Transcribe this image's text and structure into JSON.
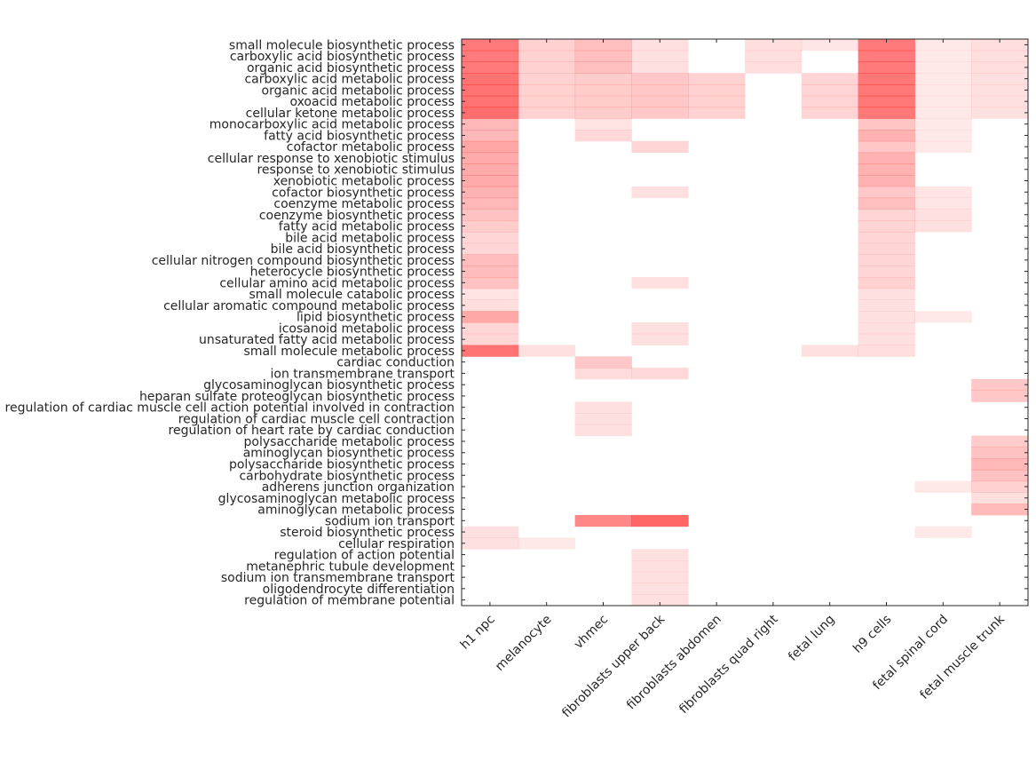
{
  "chart_data": {
    "type": "heatmap",
    "base_color": "#ff0000",
    "background_color": "#ffffff",
    "columns": [
      "h1 npc",
      "melanocyte",
      "vhmec",
      "fibroblasts upper back",
      "fibroblasts abdomen",
      "fibroblasts quad right",
      "fetal lung",
      "h9 cells",
      "fetal spinal cord",
      "fetal muscle trunk"
    ],
    "rows": [
      "small molecule biosynthetic process",
      "carboxylic acid biosynthetic process",
      "organic acid biosynthetic process",
      "carboxylic acid metabolic process",
      "organic acid metabolic process",
      "oxoacid metabolic process",
      "cellular ketone metabolic process",
      "monocarboxylic acid metabolic process",
      "fatty acid biosynthetic process",
      "cofactor metabolic process",
      "cellular response to xenobiotic stimulus",
      "response to xenobiotic stimulus",
      "xenobiotic metabolic process",
      "cofactor biosynthetic process",
      "coenzyme metabolic process",
      "coenzyme biosynthetic process",
      "fatty acid metabolic process",
      "bile acid metabolic process",
      "bile acid biosynthetic process",
      "cellular nitrogen compound biosynthetic process",
      "heterocycle biosynthetic process",
      "cellular amino acid metabolic process",
      "small molecule catabolic process",
      "cellular aromatic compound metabolic process",
      "lipid biosynthetic process",
      "icosanoid metabolic process",
      "unsaturated fatty acid metabolic process",
      "small molecule metabolic process",
      "cardiac conduction",
      "ion transmembrane transport",
      "glycosaminoglycan biosynthetic process",
      "heparan sulfate proteoglycan biosynthetic process",
      "regulation of cardiac muscle cell action potential involved in contraction",
      "regulation of cardiac muscle cell contraction",
      "regulation of heart rate by cardiac conduction",
      "polysaccharide metabolic process",
      "aminoglycan biosynthetic process",
      "polysaccharide biosynthetic process",
      "carbohydrate biosynthetic process",
      "adherens junction organization",
      "glycosaminoglycan metabolic process",
      "aminoglycan metabolic process",
      "sodium ion transport",
      "steroid biosynthetic process",
      "cellular respiration",
      "regulation of action potential",
      "metanephric tubule development",
      "sodium ion transmembrane transport",
      "oligodendrocyte differentiation",
      "regulation of membrane potential"
    ],
    "values": [
      [
        0.52,
        0.18,
        0.25,
        0.12,
        0.0,
        0.13,
        0.1,
        0.52,
        0.09,
        0.13
      ],
      [
        0.52,
        0.18,
        0.25,
        0.12,
        0.0,
        0.13,
        0.0,
        0.52,
        0.09,
        0.13
      ],
      [
        0.52,
        0.18,
        0.25,
        0.12,
        0.0,
        0.13,
        0.0,
        0.52,
        0.09,
        0.13
      ],
      [
        0.55,
        0.18,
        0.2,
        0.22,
        0.18,
        0.0,
        0.17,
        0.53,
        0.09,
        0.12
      ],
      [
        0.55,
        0.18,
        0.2,
        0.22,
        0.18,
        0.0,
        0.17,
        0.53,
        0.09,
        0.12
      ],
      [
        0.55,
        0.18,
        0.2,
        0.22,
        0.18,
        0.0,
        0.17,
        0.53,
        0.09,
        0.12
      ],
      [
        0.57,
        0.18,
        0.2,
        0.22,
        0.18,
        0.0,
        0.17,
        0.53,
        0.09,
        0.12
      ],
      [
        0.28,
        0.0,
        0.11,
        0.0,
        0.0,
        0.0,
        0.0,
        0.23,
        0.09,
        0.0
      ],
      [
        0.28,
        0.0,
        0.15,
        0.0,
        0.0,
        0.0,
        0.0,
        0.3,
        0.09,
        0.0
      ],
      [
        0.35,
        0.0,
        0.0,
        0.16,
        0.0,
        0.0,
        0.0,
        0.22,
        0.09,
        0.0
      ],
      [
        0.33,
        0.0,
        0.0,
        0.0,
        0.0,
        0.0,
        0.0,
        0.3,
        0.0,
        0.0
      ],
      [
        0.33,
        0.0,
        0.0,
        0.0,
        0.0,
        0.0,
        0.0,
        0.3,
        0.0,
        0.0
      ],
      [
        0.33,
        0.0,
        0.0,
        0.0,
        0.0,
        0.0,
        0.0,
        0.3,
        0.0,
        0.0
      ],
      [
        0.3,
        0.0,
        0.0,
        0.12,
        0.0,
        0.0,
        0.0,
        0.21,
        0.1,
        0.0
      ],
      [
        0.28,
        0.0,
        0.0,
        0.0,
        0.0,
        0.0,
        0.0,
        0.25,
        0.1,
        0.0
      ],
      [
        0.24,
        0.0,
        0.0,
        0.0,
        0.0,
        0.0,
        0.0,
        0.17,
        0.12,
        0.0
      ],
      [
        0.2,
        0.0,
        0.0,
        0.0,
        0.0,
        0.0,
        0.0,
        0.17,
        0.12,
        0.0
      ],
      [
        0.16,
        0.0,
        0.0,
        0.0,
        0.0,
        0.0,
        0.0,
        0.16,
        0.0,
        0.0
      ],
      [
        0.16,
        0.0,
        0.0,
        0.0,
        0.0,
        0.0,
        0.0,
        0.16,
        0.0,
        0.0
      ],
      [
        0.26,
        0.0,
        0.0,
        0.0,
        0.0,
        0.0,
        0.0,
        0.16,
        0.0,
        0.0
      ],
      [
        0.26,
        0.0,
        0.0,
        0.0,
        0.0,
        0.0,
        0.0,
        0.16,
        0.0,
        0.0
      ],
      [
        0.24,
        0.0,
        0.0,
        0.12,
        0.0,
        0.0,
        0.0,
        0.18,
        0.0,
        0.0
      ],
      [
        0.11,
        0.0,
        0.0,
        0.0,
        0.0,
        0.0,
        0.0,
        0.12,
        0.0,
        0.0
      ],
      [
        0.13,
        0.0,
        0.0,
        0.0,
        0.0,
        0.0,
        0.0,
        0.12,
        0.0,
        0.0
      ],
      [
        0.34,
        0.0,
        0.0,
        0.0,
        0.0,
        0.0,
        0.0,
        0.12,
        0.09,
        0.0
      ],
      [
        0.16,
        0.0,
        0.0,
        0.12,
        0.0,
        0.0,
        0.0,
        0.12,
        0.0,
        0.0
      ],
      [
        0.16,
        0.0,
        0.0,
        0.12,
        0.0,
        0.0,
        0.0,
        0.12,
        0.0,
        0.0
      ],
      [
        0.55,
        0.12,
        0.0,
        0.0,
        0.0,
        0.0,
        0.12,
        0.13,
        0.0,
        0.0
      ],
      [
        0.0,
        0.0,
        0.22,
        0.0,
        0.0,
        0.0,
        0.0,
        0.0,
        0.0,
        0.0
      ],
      [
        0.0,
        0.0,
        0.14,
        0.15,
        0.0,
        0.0,
        0.0,
        0.0,
        0.0,
        0.0
      ],
      [
        0.0,
        0.0,
        0.0,
        0.0,
        0.0,
        0.0,
        0.0,
        0.0,
        0.0,
        0.22
      ],
      [
        0.0,
        0.0,
        0.0,
        0.0,
        0.0,
        0.0,
        0.0,
        0.0,
        0.0,
        0.22
      ],
      [
        0.0,
        0.0,
        0.12,
        0.0,
        0.0,
        0.0,
        0.0,
        0.0,
        0.0,
        0.0
      ],
      [
        0.0,
        0.0,
        0.12,
        0.0,
        0.0,
        0.0,
        0.0,
        0.0,
        0.0,
        0.0
      ],
      [
        0.0,
        0.0,
        0.12,
        0.0,
        0.0,
        0.0,
        0.0,
        0.0,
        0.0,
        0.0
      ],
      [
        0.0,
        0.0,
        0.0,
        0.0,
        0.0,
        0.0,
        0.0,
        0.0,
        0.0,
        0.2
      ],
      [
        0.0,
        0.0,
        0.0,
        0.0,
        0.0,
        0.0,
        0.0,
        0.0,
        0.0,
        0.24
      ],
      [
        0.0,
        0.0,
        0.0,
        0.0,
        0.0,
        0.0,
        0.0,
        0.0,
        0.0,
        0.28
      ],
      [
        0.0,
        0.0,
        0.0,
        0.0,
        0.0,
        0.0,
        0.0,
        0.0,
        0.0,
        0.24
      ],
      [
        0.0,
        0.0,
        0.0,
        0.0,
        0.0,
        0.0,
        0.0,
        0.0,
        0.09,
        0.18
      ],
      [
        0.0,
        0.0,
        0.0,
        0.0,
        0.0,
        0.0,
        0.0,
        0.0,
        0.0,
        0.13
      ],
      [
        0.0,
        0.0,
        0.0,
        0.0,
        0.0,
        0.0,
        0.0,
        0.0,
        0.0,
        0.27
      ],
      [
        0.0,
        0.0,
        0.47,
        0.6,
        0.0,
        0.0,
        0.0,
        0.0,
        0.0,
        0.0
      ],
      [
        0.12,
        0.0,
        0.0,
        0.0,
        0.0,
        0.0,
        0.0,
        0.0,
        0.09,
        0.0
      ],
      [
        0.12,
        0.09,
        0.0,
        0.0,
        0.0,
        0.0,
        0.0,
        0.0,
        0.0,
        0.0
      ],
      [
        0.0,
        0.0,
        0.0,
        0.12,
        0.0,
        0.0,
        0.0,
        0.0,
        0.0,
        0.0
      ],
      [
        0.0,
        0.0,
        0.0,
        0.12,
        0.0,
        0.0,
        0.0,
        0.0,
        0.0,
        0.0
      ],
      [
        0.0,
        0.0,
        0.0,
        0.12,
        0.0,
        0.0,
        0.0,
        0.0,
        0.0,
        0.0
      ],
      [
        0.0,
        0.0,
        0.0,
        0.12,
        0.0,
        0.0,
        0.0,
        0.0,
        0.0,
        0.0
      ],
      [
        0.0,
        0.0,
        0.0,
        0.12,
        0.0,
        0.0,
        0.0,
        0.0,
        0.0,
        0.0
      ]
    ],
    "grid": false,
    "legend": "none"
  }
}
